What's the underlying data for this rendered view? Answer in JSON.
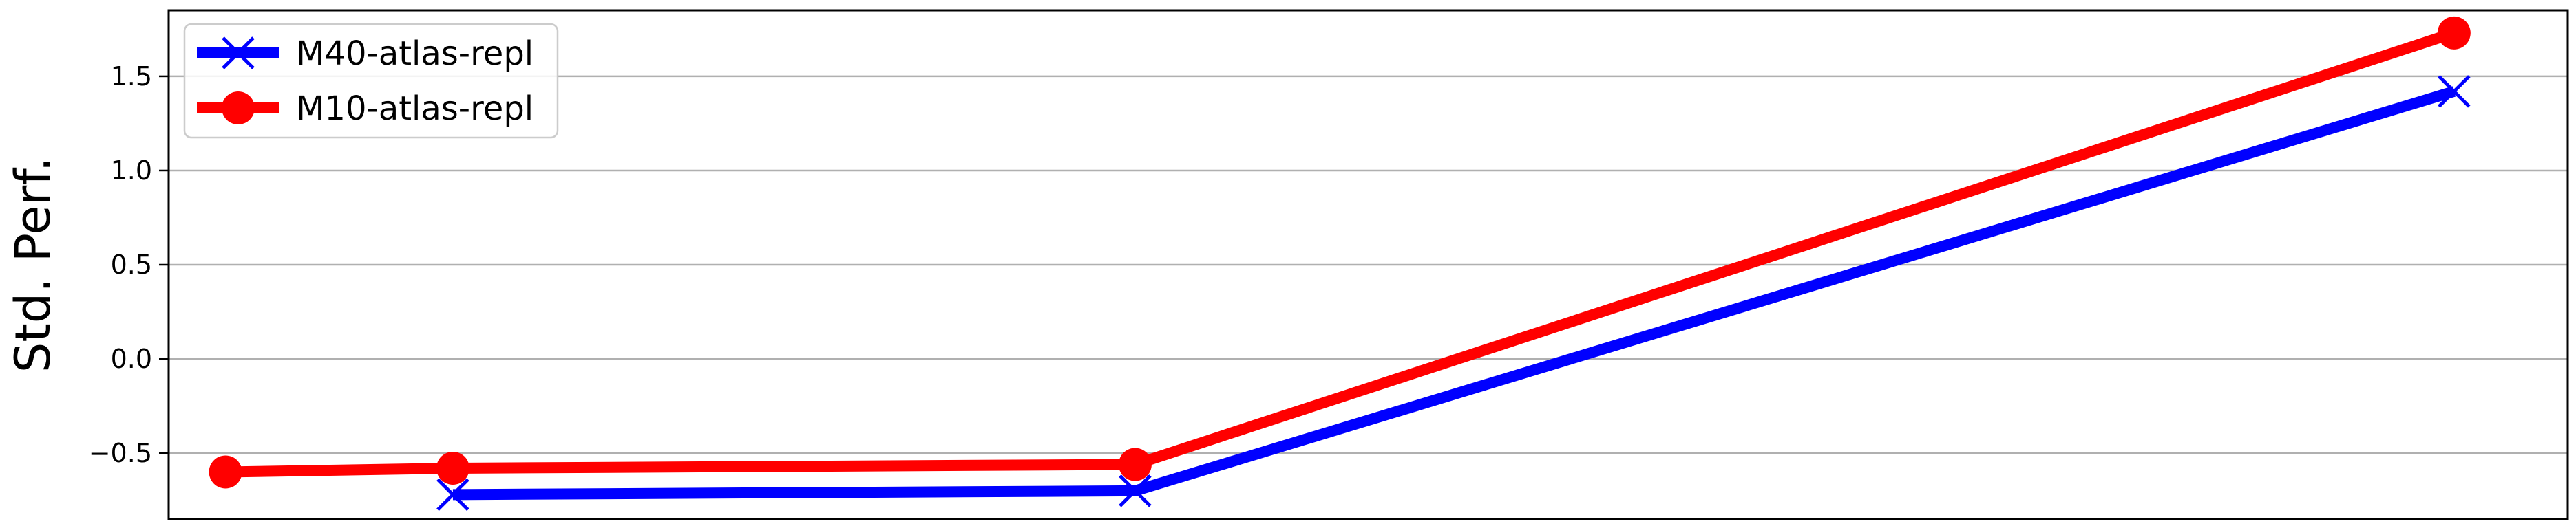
{
  "chart_data": {
    "type": "line",
    "title": "",
    "xlabel": "",
    "ylabel": "Std. Perf.",
    "xlim": [
      -0.25,
      10.3
    ],
    "ylim": [
      -0.85,
      1.85
    ],
    "yticks": [
      -0.5,
      0.0,
      0.5,
      1.0,
      1.5
    ],
    "ytick_labels": [
      "−0.5",
      "0.0",
      "0.5",
      "1.0",
      "1.5"
    ],
    "grid": "horizontal",
    "legend": "top-left",
    "series": [
      {
        "name": "M40-atlas-repl",
        "color": "#0000ff",
        "marker": "x",
        "x": [
          1,
          4,
          9.8
        ],
        "y": [
          -0.72,
          -0.7,
          1.42
        ]
      },
      {
        "name": "M10-atlas-repl",
        "color": "#ff0000",
        "marker": "circle",
        "x": [
          0,
          1,
          4,
          9.8
        ],
        "y": [
          -0.6,
          -0.58,
          -0.56,
          1.73
        ]
      }
    ]
  }
}
